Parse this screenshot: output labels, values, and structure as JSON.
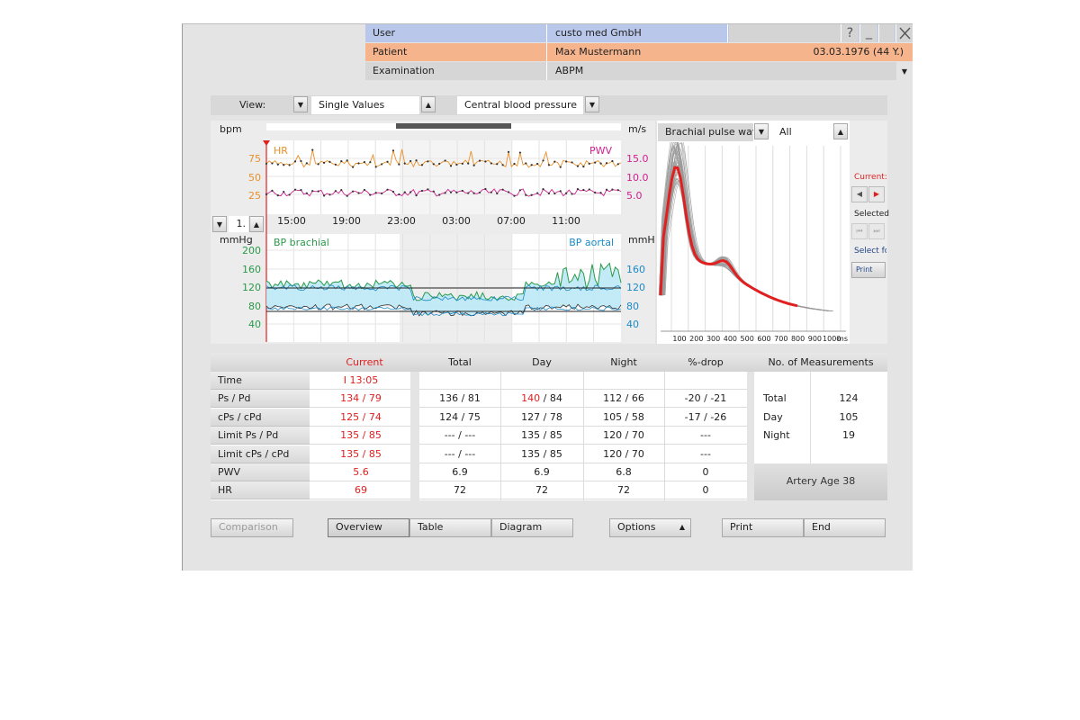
{
  "header": {
    "user": {
      "label": "User",
      "value": "custo med GmbH"
    },
    "patient": {
      "label": "Patient",
      "name": "Max Mustermann",
      "dob": "03.03.1976 (44 Y.)"
    },
    "examination": {
      "label": "Examination",
      "value": "ABPM"
    },
    "help_label": "?",
    "minimize_label": "_",
    "colors": {
      "user_row": "#b9c8ea",
      "patient_row": "#f6b48c",
      "exam_row": "#d6d6d6"
    }
  },
  "toolbar": {
    "view_label": "View:",
    "view_value": "Single Values",
    "mode_value": "Central blood pressure"
  },
  "trend_chart": {
    "hr_unit": "bpm",
    "pwv_unit": "m/s",
    "hr_label": "HR",
    "pwv_label": "PWV",
    "hr_ticks": [
      "75",
      "50",
      "25"
    ],
    "pwv_ticks": [
      "15.0",
      "10.0",
      "5.0"
    ],
    "time_ticks": [
      "15:00",
      "19:00",
      "23:00",
      "03:00",
      "07:00",
      "11:00"
    ],
    "zoom_value": "1.",
    "bp_unit_left": "mmHg",
    "bp_unit_right": "mmHg",
    "bp_brachial_label": "BP brachial",
    "bp_aortal_label": "BP aortal",
    "bp_left_ticks": [
      "200",
      "160",
      "120",
      "80",
      "40"
    ],
    "bp_right_ticks": [
      "160",
      "120",
      "80",
      "40"
    ],
    "colors": {
      "hr": "#e8902a",
      "pwv": "#d02090",
      "brachial": "#2a9a4a",
      "aortal": "#1a8ac8",
      "fill": "#bde8f6"
    }
  },
  "pulse_wave": {
    "selector_value": "Brachial pulse wave",
    "filter_value": "All",
    "x_ticks": [
      "100",
      "200",
      "300",
      "400",
      "500",
      "600",
      "700",
      "800",
      "900",
      "1000"
    ],
    "x_unit": "ms",
    "highlight_color": "#e02020"
  },
  "side_panel": {
    "current_label": "Current:",
    "selected_label": "Selected",
    "select_for_label": "Select fo",
    "print_label": "Print"
  },
  "table": {
    "headers": [
      "Current",
      "Total",
      "Day",
      "Night",
      "%-drop",
      "No. of Measurements"
    ],
    "rows": [
      {
        "label": "Time",
        "current": "I 13:05",
        "total": "",
        "day": "",
        "night": "",
        "drop": ""
      },
      {
        "label": "Ps / Pd",
        "current": "134 / 79",
        "total": "136 / 81",
        "day_sys": "140",
        "day_rest": " / 84",
        "night": "112 / 66",
        "drop": "-20 / -21"
      },
      {
        "label": "cPs / cPd",
        "current": "125 / 74",
        "total": "124 / 75",
        "day": "127 / 78",
        "night": "105 / 58",
        "drop": "-17 / -26"
      },
      {
        "label": "Limit Ps / Pd",
        "current": "135 / 85",
        "total": "--- / ---",
        "day": "135 / 85",
        "night": "120 / 70",
        "drop": "---"
      },
      {
        "label": "Limit cPs / cPd",
        "current": "135 / 85",
        "total": "--- / ---",
        "day": "135 / 85",
        "night": "120 / 70",
        "drop": "---"
      },
      {
        "label": "PWV",
        "current": "5.6",
        "total": "6.9",
        "day": "6.9",
        "night": "6.8",
        "drop": "0"
      },
      {
        "label": "HR",
        "current": "69",
        "total": "72",
        "day": "72",
        "night": "72",
        "drop": "0"
      }
    ],
    "measurements": [
      {
        "label": "Total",
        "value": "124"
      },
      {
        "label": "Day",
        "value": "105"
      },
      {
        "label": "Night",
        "value": "19"
      }
    ],
    "artery_age": "Artery Age 38"
  },
  "footer": {
    "comparison": "Comparison",
    "overview": "Overview",
    "table": "Table",
    "diagram": "Diagram",
    "options": "Options",
    "print": "Print",
    "end": "End"
  }
}
